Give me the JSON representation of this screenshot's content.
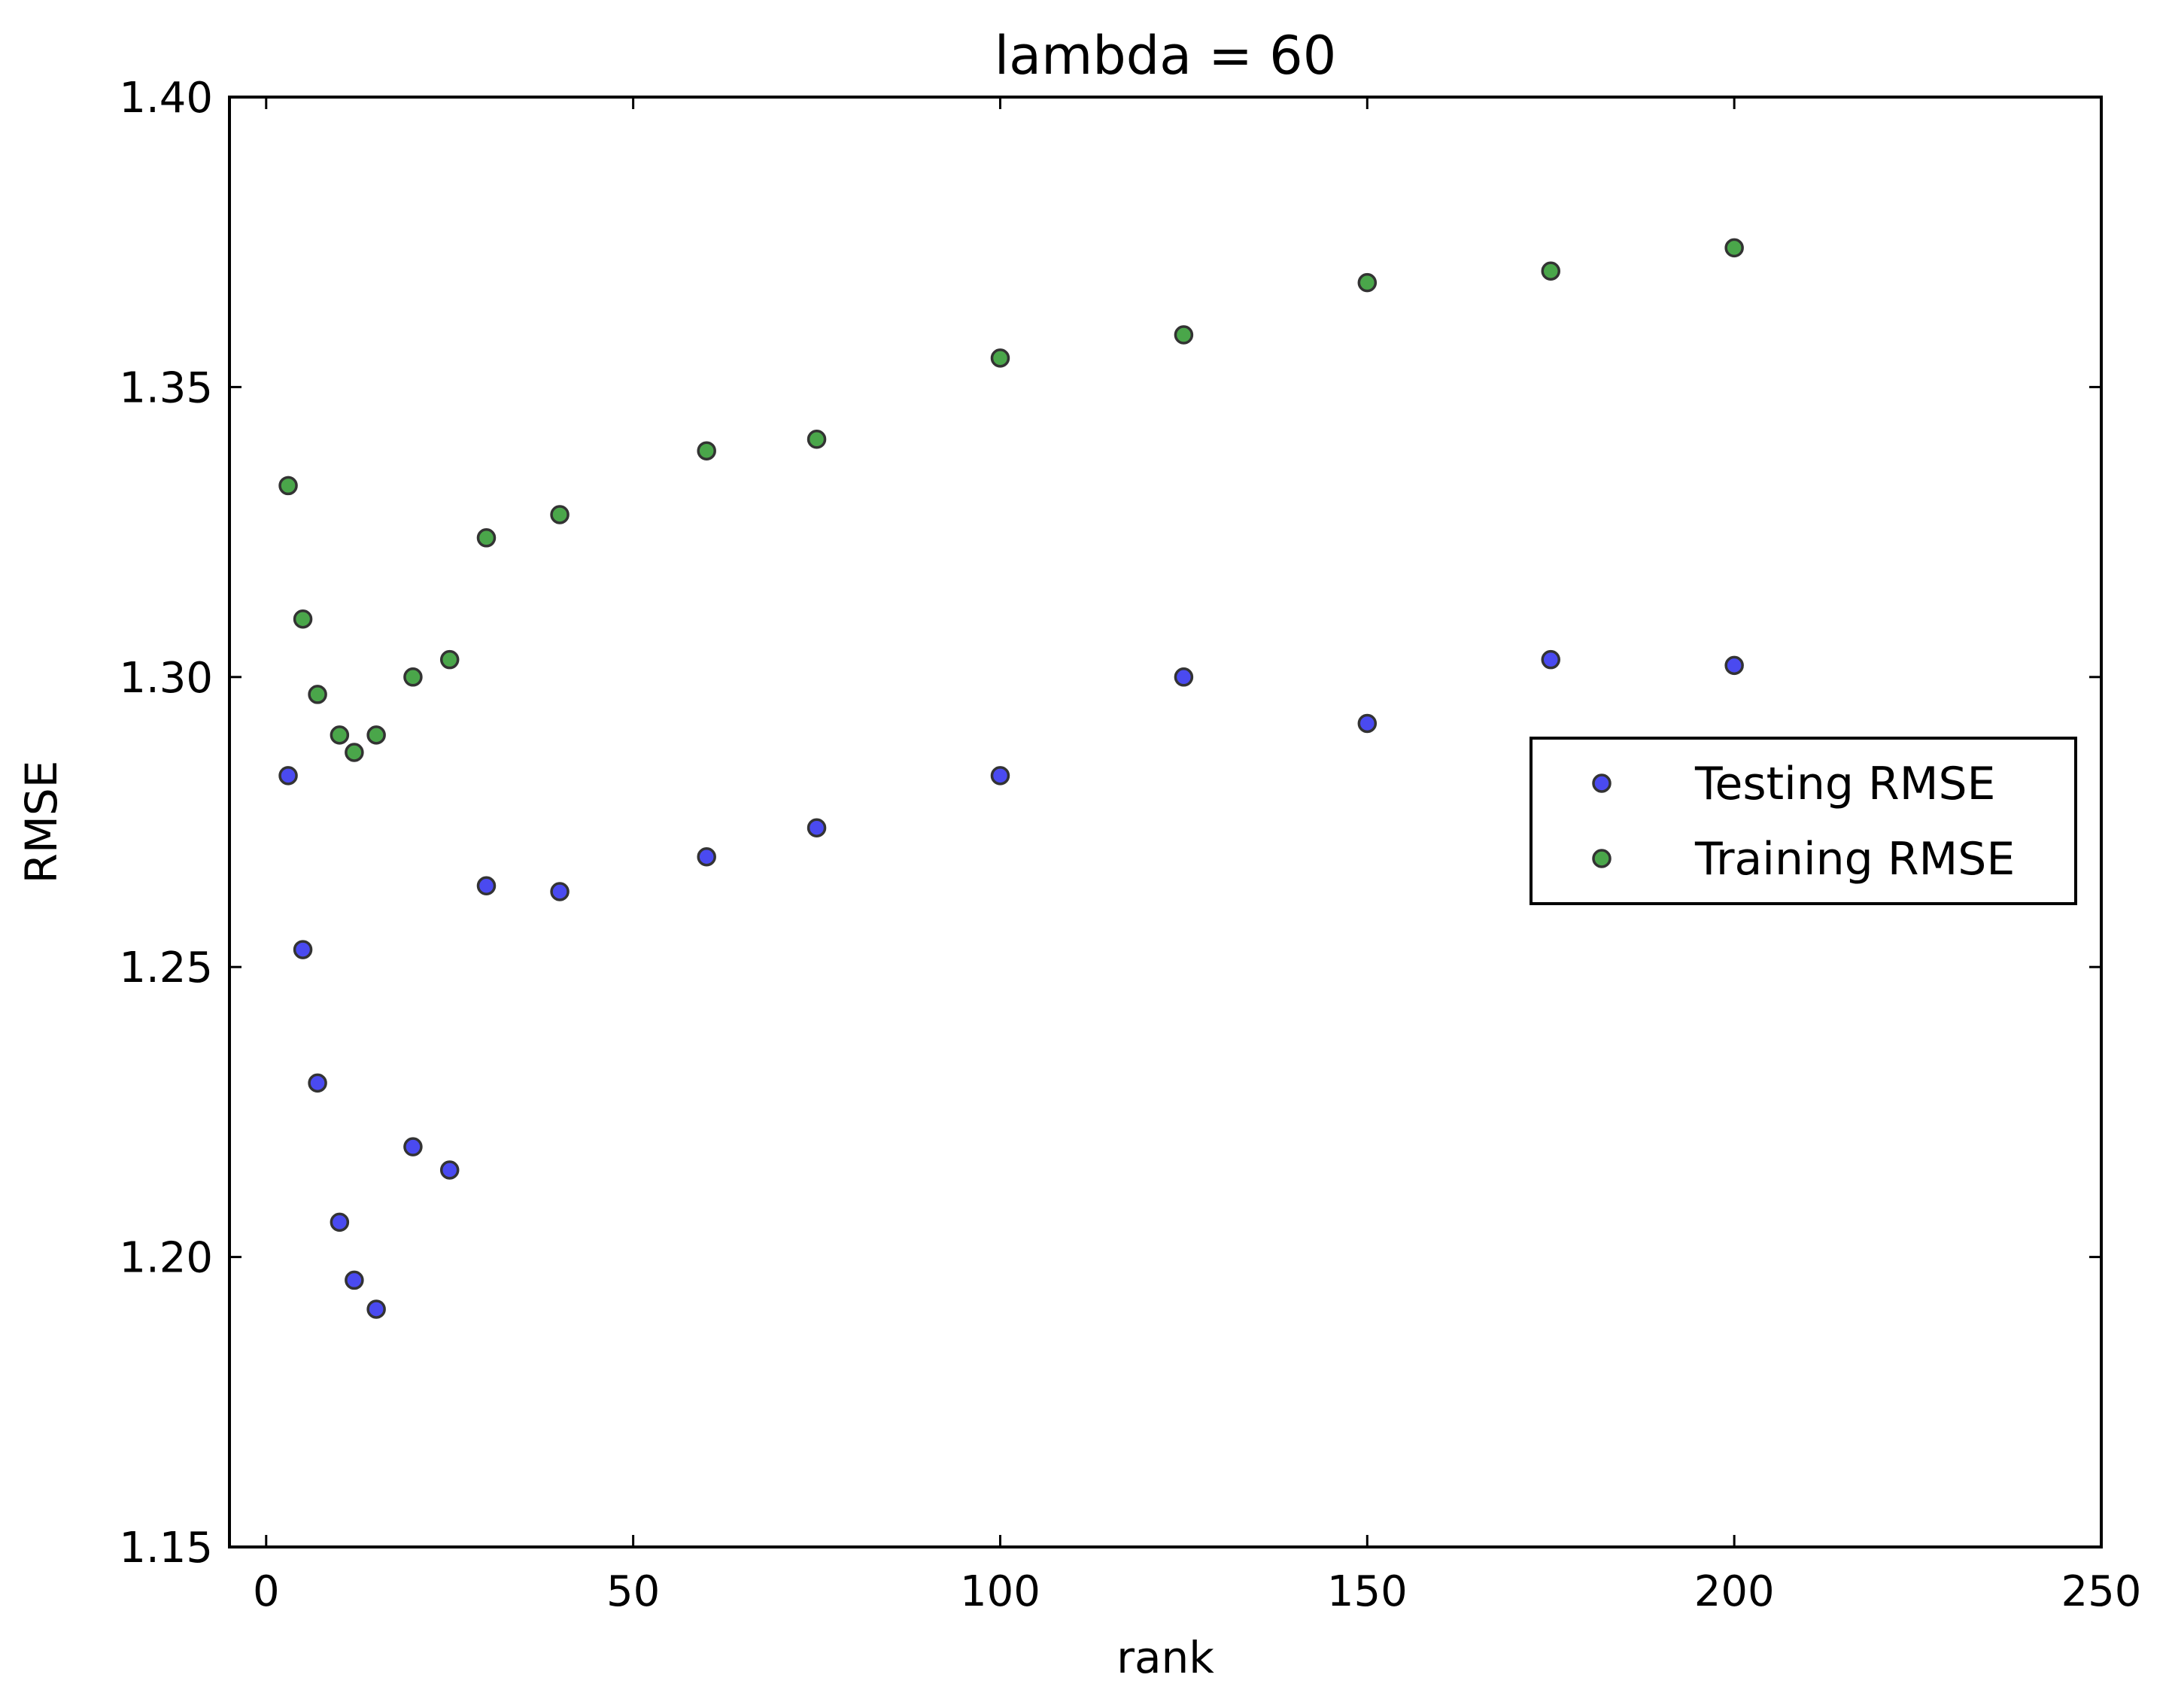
{
  "chart_data": {
    "type": "scatter",
    "title": "lambda = 60",
    "xlabel": "rank",
    "ylabel": "RMSE",
    "xlim": [
      -5,
      250
    ],
    "ylim": [
      1.15,
      1.4
    ],
    "xticks": [
      0,
      50,
      100,
      150,
      200,
      250
    ],
    "yticks": [
      1.15,
      1.2,
      1.25,
      1.3,
      1.35,
      1.4
    ],
    "xtick_labels": [
      "0",
      "50",
      "100",
      "150",
      "200",
      "250"
    ],
    "ytick_labels": [
      "1.15",
      "1.20",
      "1.25",
      "1.30",
      "1.35",
      "1.40"
    ],
    "grid": false,
    "legend_position": "center-right",
    "series": [
      {
        "name": "Testing RMSE",
        "color": "#4a4af0",
        "x": [
          3,
          5,
          7,
          10,
          12,
          15,
          20,
          25,
          30,
          40,
          60,
          75,
          100,
          125,
          150,
          175,
          200
        ],
        "y": [
          1.283,
          1.253,
          1.23,
          1.206,
          1.196,
          1.191,
          1.219,
          1.215,
          1.264,
          1.263,
          1.269,
          1.274,
          1.283,
          1.3,
          1.292,
          1.303,
          1.302
        ]
      },
      {
        "name": "Training RMSE",
        "color": "#4aa64a",
        "x": [
          3,
          5,
          7,
          10,
          12,
          15,
          20,
          25,
          30,
          40,
          60,
          75,
          100,
          125,
          150,
          175,
          200
        ],
        "y": [
          1.333,
          1.31,
          1.297,
          1.29,
          1.287,
          1.29,
          1.3,
          1.303,
          1.324,
          1.328,
          1.339,
          1.341,
          1.355,
          1.359,
          1.368,
          1.37,
          1.374
        ]
      }
    ]
  }
}
